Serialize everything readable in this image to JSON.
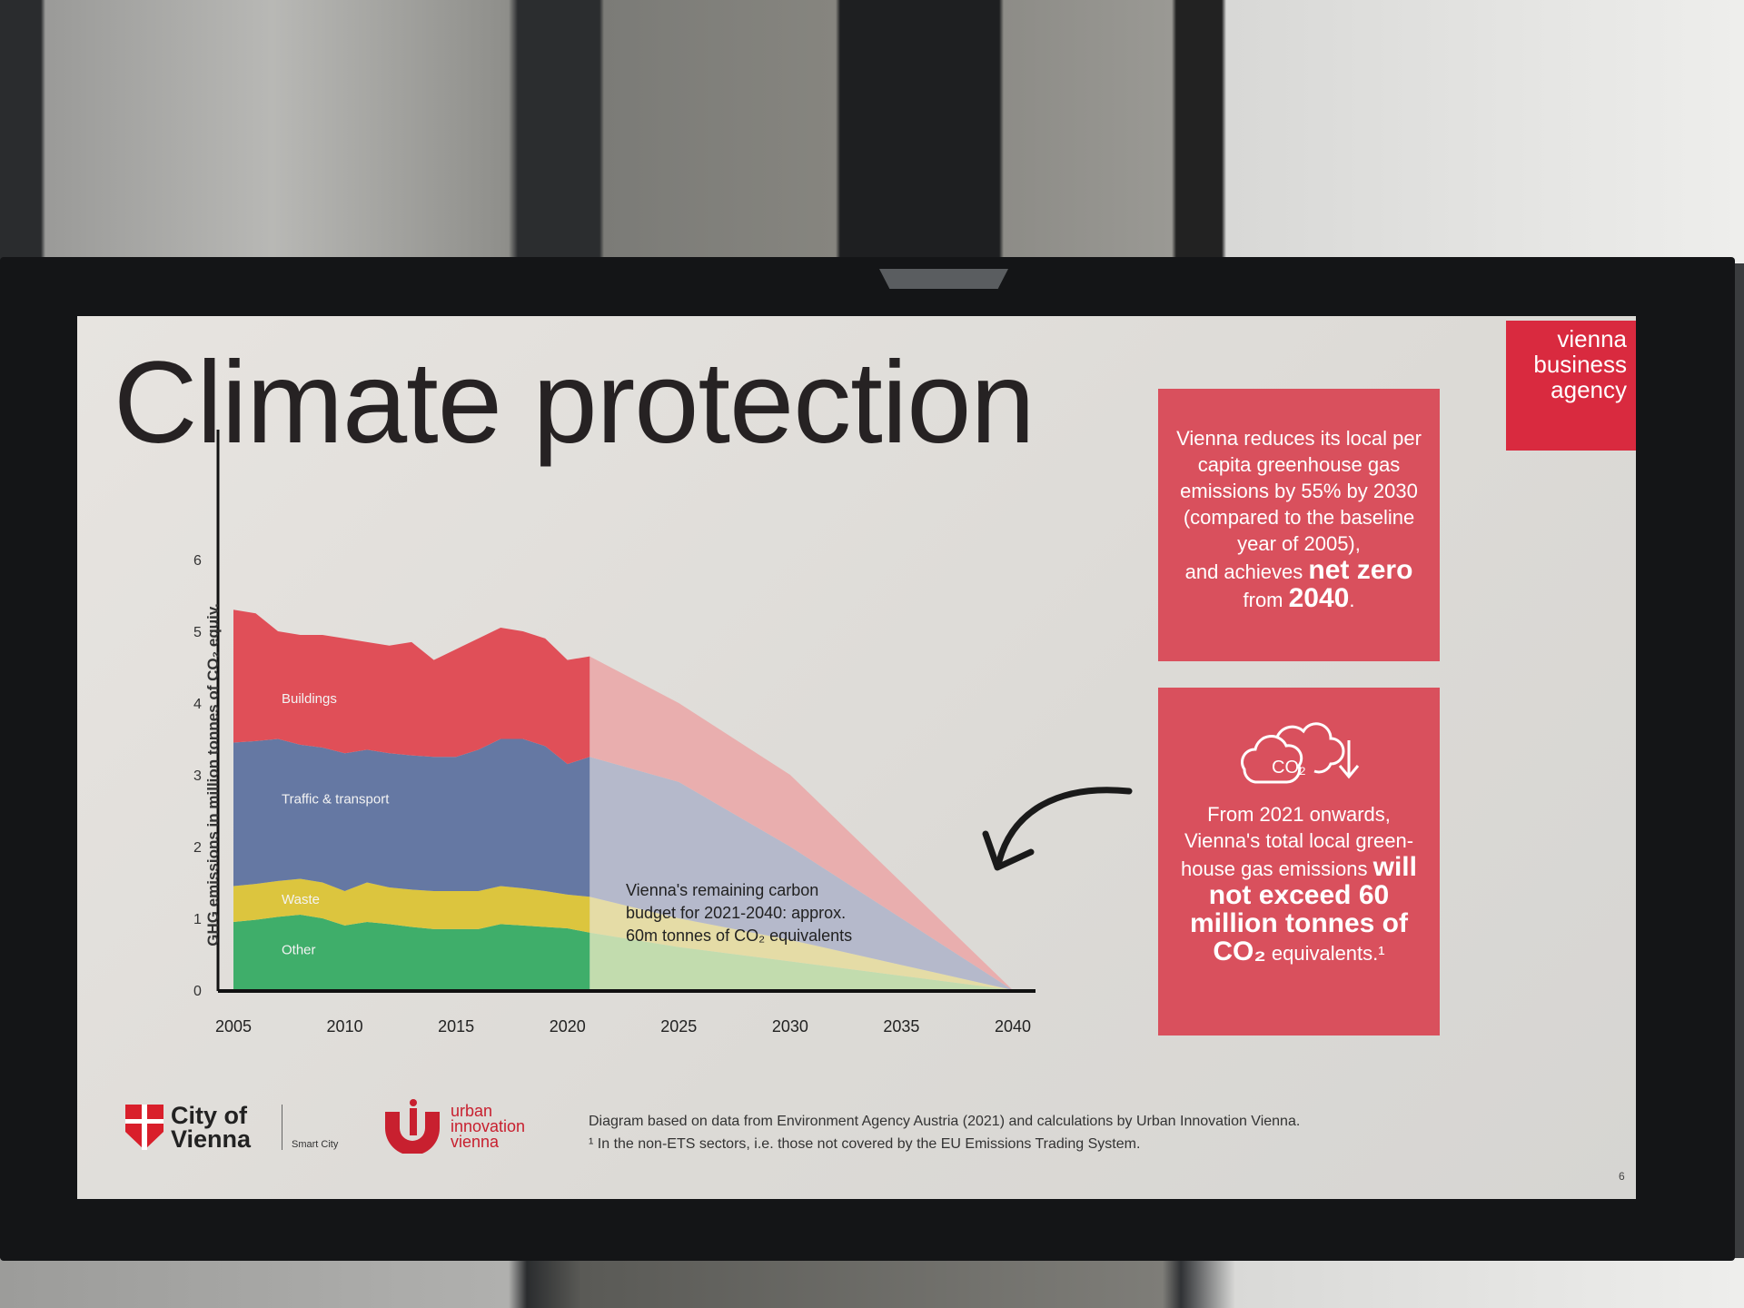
{
  "slide": {
    "title": "Climate protection",
    "brand_logo": [
      "vienna",
      "business",
      "agency"
    ],
    "box1": {
      "text": "Vienna reduces its local per capita greenhouse gas emissions by 55% by 2030 (compared to the baseline year of 2005),",
      "and": "and achieves",
      "bold1": "net zero",
      "from": "from",
      "bold2": "2040",
      "end": "."
    },
    "box2": {
      "icon": "co2-cloud-down-arrow-icon",
      "icon_text": "CO₂",
      "text": "From 2021 onwards, Vienna's total local green-house gas emissions",
      "bold": "will not exceed 60 million tonnes of CO₂",
      "end": "equivalents.¹"
    },
    "footer": {
      "city_logo": "City of Vienna",
      "smart_city": "Smart City",
      "uiv_logo": [
        "urban",
        "innovation",
        "vienna"
      ],
      "source": "Diagram based on data from Environment Agency Austria (2021) and calculations by Urban Innovation Vienna.",
      "footnote": "¹ In the non-ETS sectors, i.e. those not covered by the EU Emissions Trading System.",
      "page": "6"
    },
    "colors": {
      "accent": "#d9505d",
      "brand": "#d92a3f"
    }
  },
  "chart_data": {
    "type": "area",
    "stacked": true,
    "ylabel": "GHG emissions in million tonnes of CO₂ equiv.",
    "ylim": [
      0,
      6
    ],
    "xlim": [
      2005,
      2040
    ],
    "yticks": [
      "0",
      "1",
      "2",
      "3",
      "4",
      "5",
      "6"
    ],
    "xticks": [
      "2005",
      "2010",
      "2015",
      "2020",
      "2025",
      "2030",
      "2035",
      "2040"
    ],
    "annotation": "Vienna's remaining carbon budget for 2021-2040: approx. 60m tonnes of CO₂ equivalents",
    "historical": {
      "x": [
        2005,
        2006,
        2007,
        2008,
        2009,
        2010,
        2011,
        2012,
        2013,
        2014,
        2015,
        2016,
        2017,
        2018,
        2019,
        2020,
        2021
      ],
      "series": [
        {
          "name": "Other",
          "color": "#3fae6a",
          "values": [
            0.95,
            0.98,
            1.02,
            1.05,
            1.0,
            0.9,
            0.95,
            0.92,
            0.88,
            0.85,
            0.85,
            0.85,
            0.92,
            0.9,
            0.88,
            0.86,
            0.8
          ]
        },
        {
          "name": "Waste",
          "color": "#dcc53e",
          "values": [
            0.5,
            0.5,
            0.5,
            0.5,
            0.5,
            0.48,
            0.55,
            0.51,
            0.52,
            0.53,
            0.53,
            0.53,
            0.53,
            0.52,
            0.5,
            0.47,
            0.5
          ]
        },
        {
          "name": "Traffic & transport",
          "color": "#6578a3",
          "values": [
            2.0,
            1.99,
            1.98,
            1.87,
            1.88,
            1.92,
            1.85,
            1.87,
            1.87,
            1.87,
            1.87,
            1.97,
            2.05,
            2.08,
            2.02,
            1.82,
            1.95
          ]
        },
        {
          "name": "Buildings",
          "color": "#e04f58",
          "values": [
            1.85,
            1.78,
            1.5,
            1.53,
            1.57,
            1.6,
            1.5,
            1.5,
            1.58,
            1.35,
            1.5,
            1.55,
            1.55,
            1.5,
            1.5,
            1.45,
            1.4
          ]
        }
      ]
    },
    "projection": {
      "x": [
        2021,
        2025,
        2030,
        2035,
        2040
      ],
      "series": [
        {
          "name": "Other",
          "color": "#c2dcae",
          "values": [
            0.8,
            0.6,
            0.4,
            0.2,
            0
          ]
        },
        {
          "name": "Waste",
          "color": "#e5dca6",
          "values": [
            0.5,
            0.4,
            0.3,
            0.15,
            0
          ]
        },
        {
          "name": "Traffic & transport",
          "color": "#b5b9cb",
          "values": [
            1.95,
            1.9,
            1.3,
            0.65,
            0
          ]
        },
        {
          "name": "Buildings",
          "color": "#e9aeae",
          "values": [
            1.4,
            1.1,
            1.0,
            0.5,
            0
          ]
        }
      ]
    }
  }
}
